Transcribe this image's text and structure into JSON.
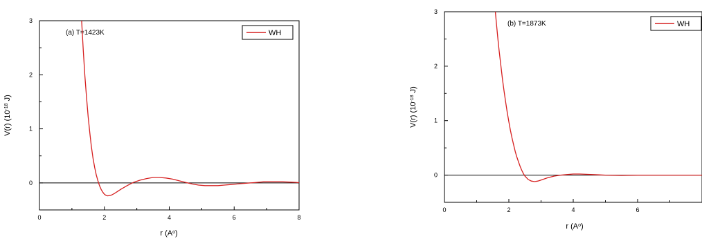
{
  "chart_data": [
    {
      "type": "line",
      "panel_label": "(a) T=1423K",
      "xlabel": "r (A",
      "xlabel_sup": "o",
      "xlabel_close": ")",
      "ylabel": "V(r) (10",
      "ylabel_sup": "-18",
      "ylabel_unit": " J)",
      "xlim": [
        0,
        8
      ],
      "ylim": [
        -0.5,
        3
      ],
      "xticks": [
        0,
        2,
        4,
        6,
        8
      ],
      "yticks": [
        0,
        1,
        2,
        3
      ],
      "zero_line": true,
      "legend": {
        "placement": "top-right"
      },
      "series": [
        {
          "name": "WH",
          "color": "#d62020",
          "x": [
            1.3,
            1.35,
            1.4,
            1.45,
            1.5,
            1.55,
            1.6,
            1.65,
            1.7,
            1.75,
            1.8,
            1.85,
            1.9,
            1.95,
            2.0,
            2.05,
            2.1,
            2.2,
            2.3,
            2.4,
            2.5,
            2.7,
            2.9,
            3.1,
            3.3,
            3.5,
            3.7,
            3.9,
            4.1,
            4.3,
            4.5,
            4.7,
            4.9,
            5.1,
            5.3,
            5.5,
            5.7,
            5.9,
            6.1,
            6.3,
            6.5,
            6.7,
            6.9,
            7.1,
            7.3,
            7.5,
            7.7,
            7.9,
            8.0
          ],
          "y": [
            3.0,
            2.45,
            1.98,
            1.58,
            1.23,
            0.93,
            0.67,
            0.46,
            0.29,
            0.15,
            0.04,
            -0.05,
            -0.12,
            -0.17,
            -0.21,
            -0.23,
            -0.24,
            -0.23,
            -0.2,
            -0.16,
            -0.12,
            -0.05,
            0.01,
            0.05,
            0.08,
            0.1,
            0.1,
            0.09,
            0.07,
            0.04,
            0.01,
            -0.02,
            -0.04,
            -0.05,
            -0.05,
            -0.05,
            -0.04,
            -0.03,
            -0.02,
            -0.01,
            0.0,
            0.01,
            0.02,
            0.02,
            0.02,
            0.02,
            0.015,
            0.01,
            0.005
          ]
        }
      ]
    },
    {
      "type": "line",
      "panel_label": "(b) T=1873K",
      "xlabel": "r (A",
      "xlabel_sup": "o",
      "xlabel_close": ")",
      "ylabel": "V(r) (10",
      "ylabel_sup": "-18",
      "ylabel_unit": " J)",
      "xlim": [
        0,
        8
      ],
      "ylim": [
        -0.5,
        3
      ],
      "xticks": [
        0,
        2,
        4,
        6
      ],
      "yticks": [
        0,
        1,
        2,
        3
      ],
      "zero_line": true,
      "legend": {
        "placement": "top-right"
      },
      "series": [
        {
          "name": "WH",
          "color": "#d62020",
          "x": [
            1.58,
            1.62,
            1.66,
            1.7,
            1.75,
            1.8,
            1.85,
            1.9,
            1.95,
            2.0,
            2.05,
            2.1,
            2.15,
            2.2,
            2.25,
            2.3,
            2.35,
            2.4,
            2.45,
            2.5,
            2.6,
            2.7,
            2.8,
            2.9,
            3.0,
            3.2,
            3.4,
            3.6,
            3.8,
            4.0,
            4.2,
            4.4,
            4.6,
            4.8,
            5.0,
            5.5,
            6.0,
            6.5,
            7.0,
            7.5,
            8.0
          ],
          "y": [
            3.0,
            2.75,
            2.5,
            2.28,
            2.02,
            1.77,
            1.55,
            1.34,
            1.15,
            0.98,
            0.82,
            0.68,
            0.55,
            0.43,
            0.33,
            0.24,
            0.16,
            0.09,
            0.03,
            -0.02,
            -0.08,
            -0.11,
            -0.12,
            -0.11,
            -0.09,
            -0.05,
            -0.02,
            0.0,
            0.01,
            0.02,
            0.02,
            0.015,
            0.01,
            0.005,
            0.0,
            -0.005,
            0.0,
            0.0,
            0.0,
            0.0,
            0.0
          ]
        }
      ]
    }
  ]
}
